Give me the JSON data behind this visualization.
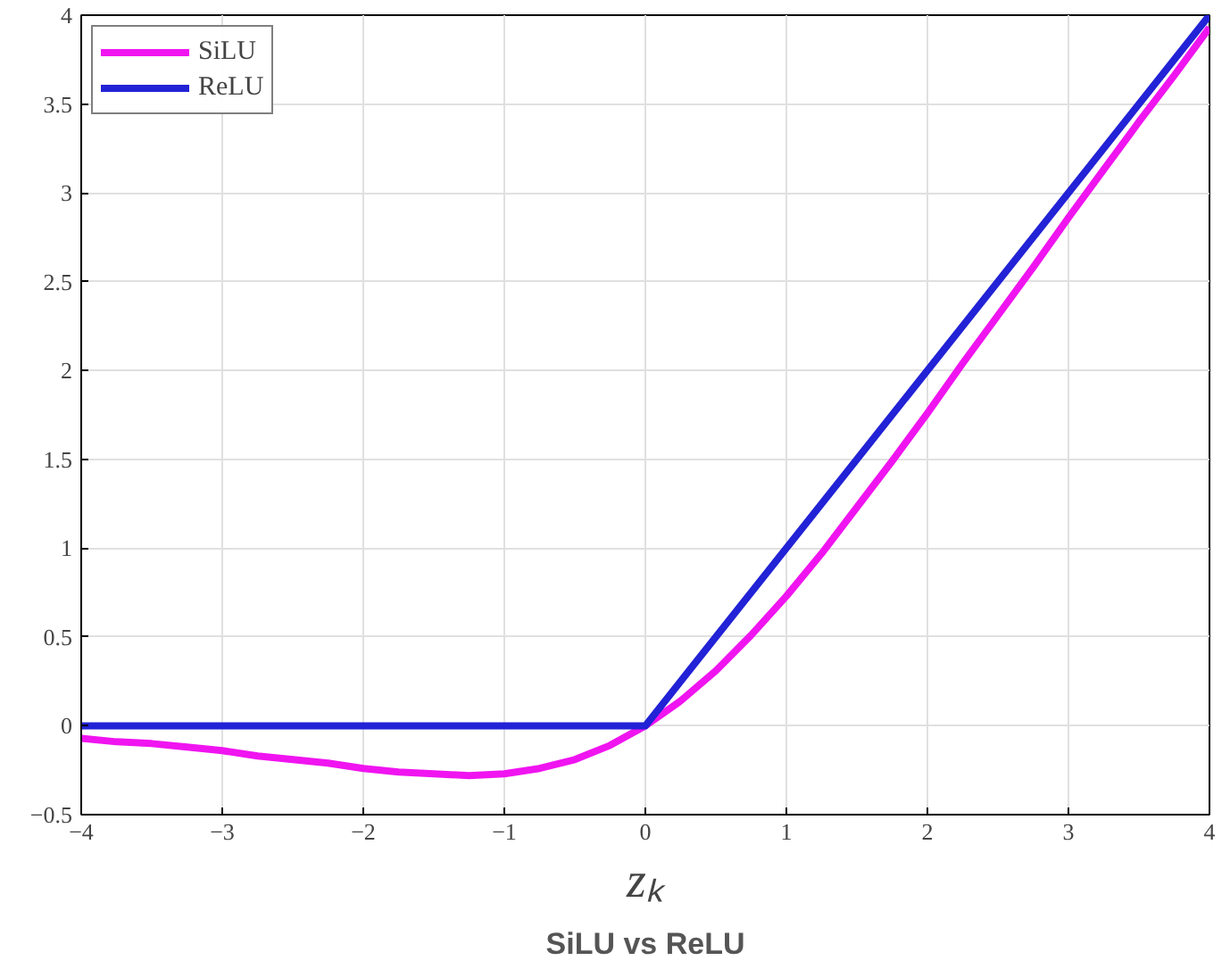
{
  "chart_data": {
    "type": "line",
    "title": "SiLU vs ReLU",
    "xlabel": "zₖ",
    "xlim": [
      -4,
      4
    ],
    "xticks": [
      -4,
      -3,
      -2,
      -1,
      0,
      1,
      2,
      3,
      4
    ],
    "ylim": [
      -0.5,
      4
    ],
    "yticks": [
      -0.5,
      0,
      0.5,
      1,
      1.5,
      2,
      2.5,
      3,
      3.5,
      4
    ],
    "grid": true,
    "legend": "top left",
    "line_style": "solid",
    "marker": "none",
    "series": [
      {
        "name": "SiLU",
        "color": "#f014f0",
        "x": [
          -4,
          -3.75,
          -3.5,
          -3.25,
          -3,
          -2.75,
          -2.5,
          -2.25,
          -2,
          -1.75,
          -1.5,
          -1.25,
          -1,
          -0.75,
          -0.5,
          -0.25,
          0,
          0.25,
          0.5,
          0.75,
          1,
          1.25,
          1.5,
          1.75,
          2,
          2.25,
          2.5,
          2.75,
          3,
          3.25,
          3.5,
          3.75,
          4
        ],
        "values": [
          -0.07,
          -0.09,
          -0.1,
          -0.12,
          -0.14,
          -0.17,
          -0.19,
          -0.21,
          -0.24,
          -0.26,
          -0.27,
          -0.28,
          -0.27,
          -0.24,
          -0.19,
          -0.11,
          0,
          0.14,
          0.31,
          0.51,
          0.73,
          0.97,
          1.23,
          1.49,
          1.76,
          2.04,
          2.31,
          2.58,
          2.86,
          3.13,
          3.4,
          3.66,
          3.93
        ]
      },
      {
        "name": "ReLU",
        "color": "#2222d6",
        "x": [
          -4,
          0,
          4
        ],
        "values": [
          0,
          0,
          4
        ]
      }
    ]
  }
}
